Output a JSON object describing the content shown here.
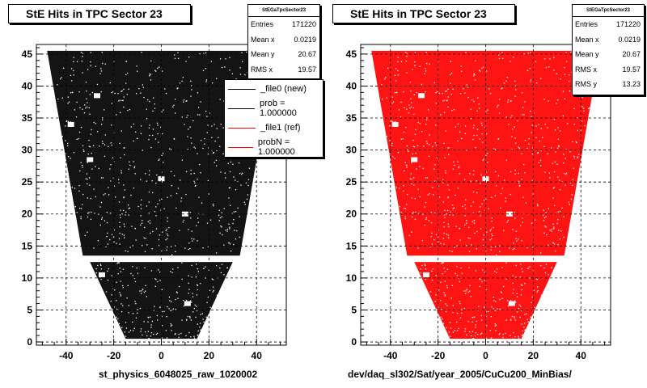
{
  "chart_data": [
    {
      "type": "scatter",
      "title": "StE Hits in TPC Sector 23",
      "xlabel": "st_physics_6048025_raw_1020002",
      "ylabel": "",
      "xlim": [
        -52.5,
        52.5
      ],
      "ylim": [
        -0.5,
        46.5
      ],
      "x_ticks": [
        -40,
        -20,
        0,
        20,
        40
      ],
      "y_ticks": [
        0,
        5,
        10,
        15,
        20,
        25,
        30,
        35,
        40,
        45
      ],
      "grid": true,
      "marker_color": "#000000",
      "stats": {
        "name": "StEGaTpcSector23",
        "rows": [
          {
            "label": "Entries",
            "value": "171220"
          },
          {
            "label": "Mean x",
            "value": "0.0219"
          },
          {
            "label": "Mean y",
            "value": "20.67"
          },
          {
            "label": "RMS x",
            "value": "19.57"
          }
        ]
      },
      "legend": {
        "placement": "top-right",
        "entries": [
          {
            "label": "_file0 (new)",
            "color": "#000000"
          },
          {
            "label": "prob = 1.000000",
            "color": "#000000"
          },
          {
            "label": "_file1 (ref)",
            "color": "#ff0000"
          },
          {
            "label": "probN = 1.000000",
            "color": "#ff0000"
          }
        ]
      },
      "shape": {
        "upper_band": {
          "y_range": [
            13.5,
            45.5
          ],
          "x_half_width_bottom": 33,
          "x_half_width_top": 48
        },
        "lower_band": {
          "y_range": [
            0.5,
            12.5
          ],
          "x_half_width_bottom": 15,
          "x_half_width_top": 30
        }
      }
    },
    {
      "type": "scatter",
      "title": "StE Hits in TPC Sector 23",
      "xlabel": "dev/daq_sl302/Sat/year_2005/CuCu200_MinBias/",
      "ylabel": "",
      "xlim": [
        -52.5,
        52.5
      ],
      "ylim": [
        -0.5,
        46.5
      ],
      "x_ticks": [
        -40,
        -20,
        0,
        20,
        40
      ],
      "y_ticks": [
        0,
        5,
        10,
        15,
        20,
        25,
        30,
        35,
        40,
        45
      ],
      "grid": true,
      "marker_color": "#ff0000",
      "stats": {
        "name": "StEGaTpcSector23",
        "rows": [
          {
            "label": "Entries",
            "value": "171220"
          },
          {
            "label": "Mean x",
            "value": "0.0219"
          },
          {
            "label": "Mean y",
            "value": "20.67"
          },
          {
            "label": "RMS x",
            "value": "19.57"
          },
          {
            "label": "RMS y",
            "value": "13.23"
          }
        ]
      },
      "shape": {
        "upper_band": {
          "y_range": [
            13.5,
            45.5
          ],
          "x_half_width_bottom": 33,
          "x_half_width_top": 48
        },
        "lower_band": {
          "y_range": [
            0.5,
            12.5
          ],
          "x_half_width_bottom": 15,
          "x_half_width_top": 30
        }
      }
    }
  ]
}
